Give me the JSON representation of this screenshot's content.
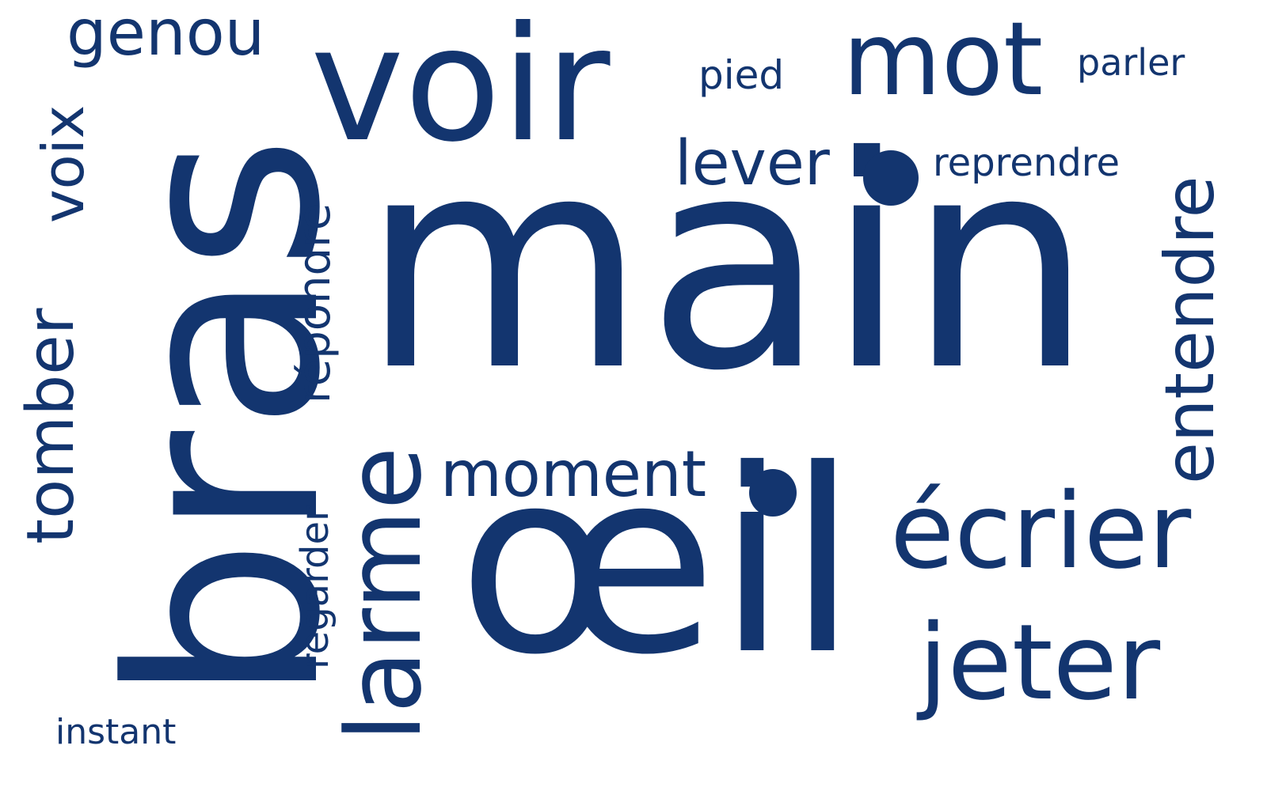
{
  "cloud": {
    "color": "#13356f",
    "background": "#ffffff",
    "words": {
      "main": "main",
      "oeil": "œil",
      "bras": "bras",
      "voir": "voir",
      "mot": "mot",
      "genou": "genou",
      "voix": "voix",
      "pied": "pied",
      "parler": "parler",
      "lever": "lever",
      "reprendre": "reprendre",
      "entendre": "entendre",
      "repondre": "répondre",
      "tomber": "tomber",
      "moment": "moment",
      "larme": "larme",
      "regarder": "regarder",
      "ecrier": "écrier",
      "jeter": "jeter",
      "instant": "instant"
    }
  }
}
